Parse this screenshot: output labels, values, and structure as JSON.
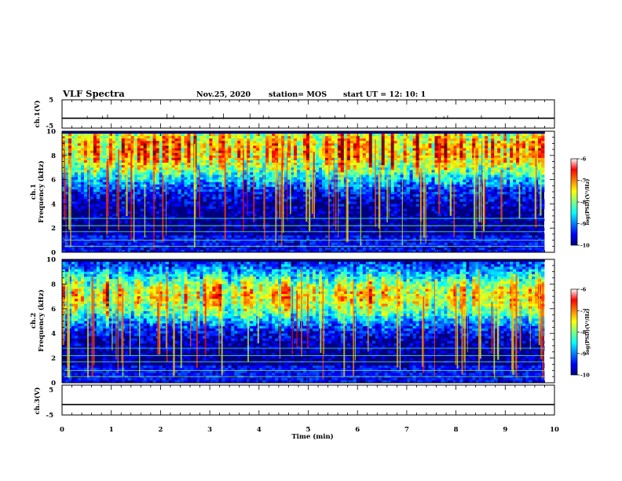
{
  "header": {
    "title": "VLF Spectra",
    "date": "Nov.25, 2020",
    "station": "station= MOS",
    "start": "start  UT =   12: 10: 1"
  },
  "chart_data": [
    {
      "type": "line",
      "name": "ch1-waveform",
      "ylabel": "ch.1(V)",
      "ylim": [
        -5,
        5
      ],
      "ytick_labels": [
        "5",
        "-5"
      ],
      "xlim": [
        0,
        10
      ],
      "baseline": -1.5
    },
    {
      "type": "heatmap",
      "name": "ch1-spectrogram",
      "ylabel_line1": "ch.1",
      "ylabel_line2": "Frequency  (kHz)",
      "ylim": [
        0,
        10
      ],
      "ytick_labels": [
        "0",
        "2",
        "4",
        "6",
        "8",
        "10"
      ],
      "xlim": [
        0,
        10
      ],
      "colorbar": {
        "label": "log(PSD)(V²/Hz)",
        "range": [
          -10,
          -6
        ],
        "tick_labels": [
          "-6",
          "-7",
          "-8",
          "-9",
          "-10"
        ]
      },
      "band_peak_khz": 8.5
    },
    {
      "type": "heatmap",
      "name": "ch2-spectrogram",
      "ylabel_line1": "ch.2",
      "ylabel_line2": "Frequency  (kHz)",
      "ylim": [
        0,
        10
      ],
      "ytick_labels": [
        "0",
        "2",
        "4",
        "6",
        "8",
        "10"
      ],
      "xlim": [
        0,
        10
      ],
      "colorbar": {
        "label": "log(PSD)(V²/Hz)",
        "range": [
          -10,
          -6
        ],
        "tick_labels": [
          "-6",
          "-7",
          "-8",
          "-9",
          "-10"
        ]
      },
      "band_peak_khz": 7.0
    },
    {
      "type": "line",
      "name": "ch3-waveform",
      "ylabel": "ch.3(V)",
      "ylim": [
        -5,
        5
      ],
      "ytick_labels": [
        "5",
        "-5"
      ],
      "xlim": [
        0,
        10
      ],
      "baseline": -1.5
    }
  ],
  "xaxis": {
    "label": "Time  (min)",
    "tick_labels": [
      "0",
      "1",
      "2",
      "3",
      "4",
      "5",
      "6",
      "7",
      "8",
      "9",
      "10"
    ]
  }
}
